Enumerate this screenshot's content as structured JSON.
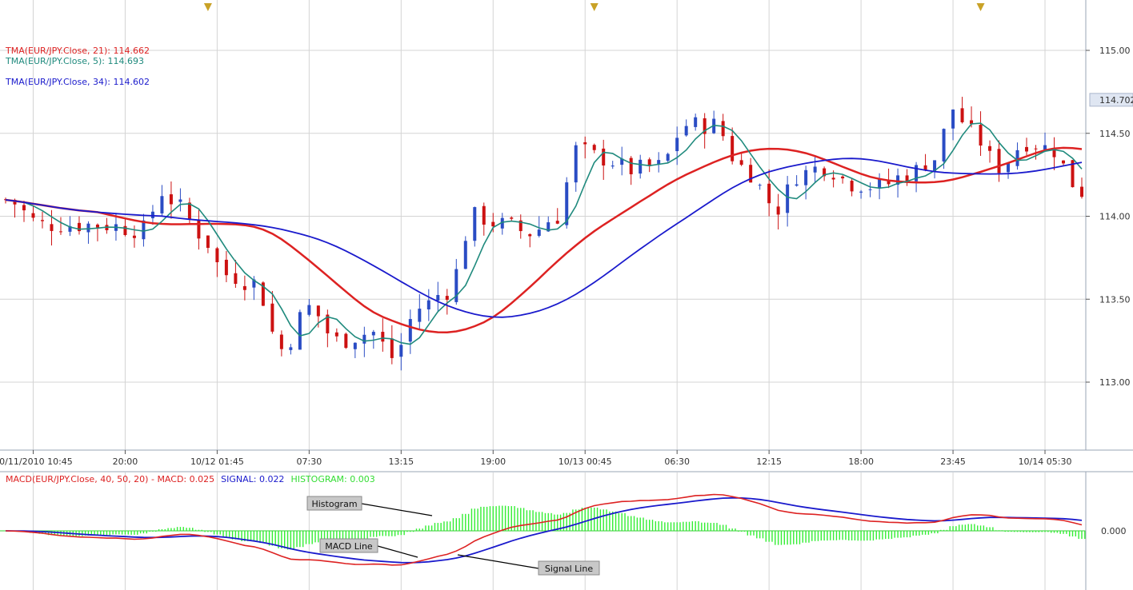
{
  "chart_data": [
    {
      "type": "candlestick",
      "panel": "price",
      "symbol": "EUR/JPY",
      "y_range": [
        112.6,
        115.2
      ],
      "y_ticks": [
        "115.00",
        "114.50",
        "114.00",
        "113.50",
        "113.00"
      ],
      "y_tick_values": [
        115.0,
        114.5,
        114.0,
        113.5,
        113.0
      ],
      "last_price_label": "114.702",
      "last_price": 114.702,
      "x_tick_labels": [
        "10/11/2010 10:45",
        "20:00",
        "10/12 01:45",
        "07:30",
        "13:15",
        "19:00",
        "10/13 00:45",
        "06:30",
        "12:15",
        "18:00",
        "23:45",
        "10/14 05:30"
      ],
      "x_tick_bar_index": [
        5,
        15,
        25,
        35,
        45,
        55,
        65,
        75,
        85,
        95,
        105,
        115
      ],
      "n_bars": 118,
      "marker_bar_index": [
        22,
        64,
        106
      ],
      "marker_color": "#c9a227",
      "ohlc": [],
      "series": [
        {
          "name": "TMA(EUR/JPY.Close, 21)",
          "value": "114.662",
          "color": "#dd2222"
        },
        {
          "name": "TMA(EUR/JPY.Close, 5)",
          "value": "114.693",
          "color": "#1f8a7d"
        },
        {
          "name": "TMA(EUR/JPY.Close, 34)",
          "value": "114.602",
          "color": "#1a1acc"
        }
      ],
      "legend_separator": ": ",
      "grid": true,
      "colors": {
        "up": "#2a4cc4",
        "down": "#cc1111",
        "grid": "#d4d4d4"
      }
    },
    {
      "type": "line",
      "panel": "indicator",
      "title_prefix": "MACD(EUR/JPY.Close, 40, 50, 20)  -  ",
      "legend": [
        {
          "label": "MACD: 0.025",
          "color": "#dd2222"
        },
        {
          "label": "SIGNAL: 0.022",
          "color": "#1a1acc"
        },
        {
          "label": "HISTOGRAM: 0.003",
          "color": "#33dd33"
        }
      ],
      "zero_label": "0.000",
      "macd": [],
      "signal": [],
      "histogram": [],
      "annotations": [
        "Histogram",
        "MACD Line",
        "Signal Line"
      ]
    }
  ]
}
